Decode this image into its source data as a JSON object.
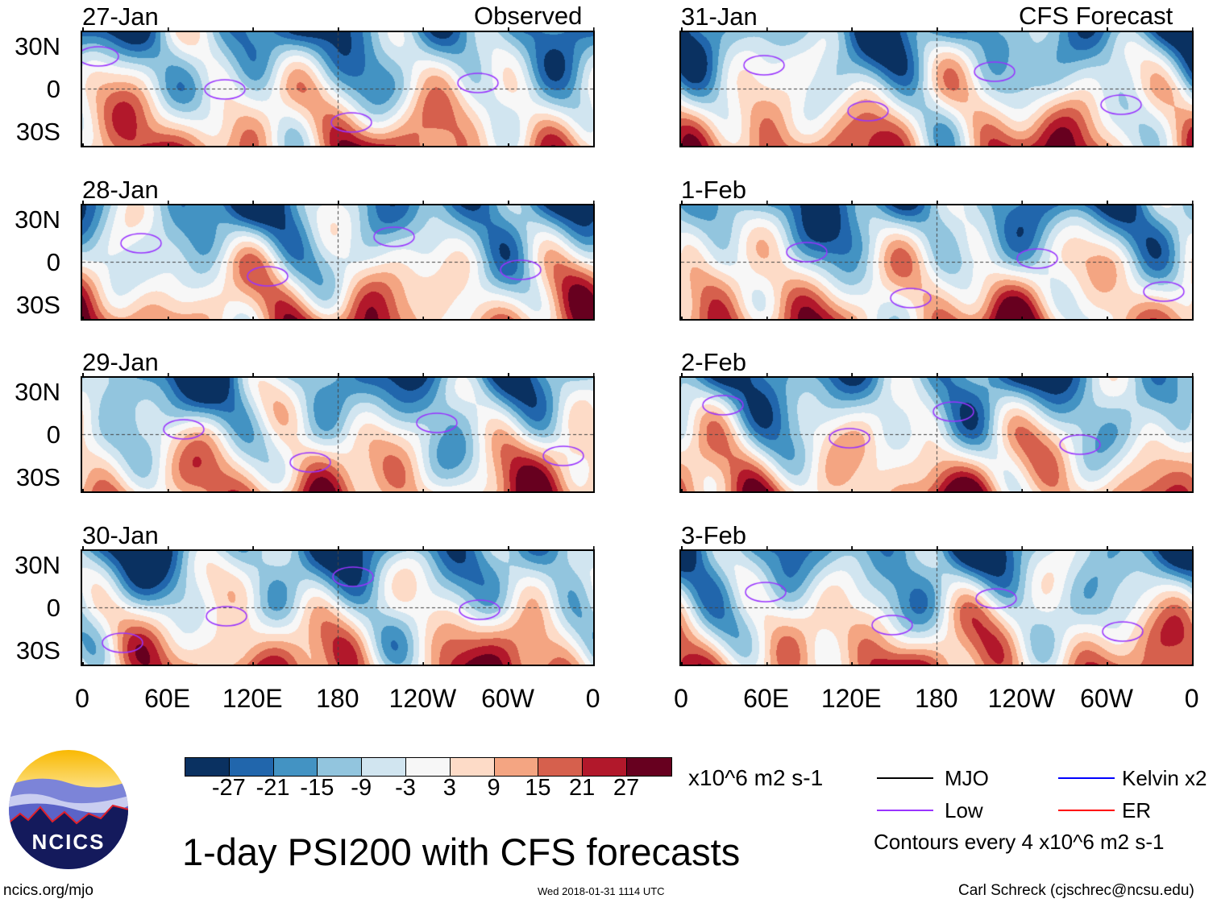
{
  "headers": {
    "left": "Observed",
    "right": "CFS Forecast"
  },
  "panels": [
    {
      "date": "27-Jan",
      "column": "observed"
    },
    {
      "date": "28-Jan",
      "column": "observed"
    },
    {
      "date": "29-Jan",
      "column": "observed"
    },
    {
      "date": "30-Jan",
      "column": "observed"
    },
    {
      "date": "31-Jan",
      "column": "forecast"
    },
    {
      "date": "1-Feb",
      "column": "forecast"
    },
    {
      "date": "2-Feb",
      "column": "forecast"
    },
    {
      "date": "3-Feb",
      "column": "forecast"
    }
  ],
  "lat_ticks": [
    "30N",
    "0",
    "30S"
  ],
  "lon_ticks": [
    "0",
    "60E",
    "120E",
    "180",
    "120W",
    "60W",
    "0"
  ],
  "colorbar": {
    "labels": [
      "-27",
      "-21",
      "-15",
      "-9",
      "-3",
      "3",
      "9",
      "15",
      "21",
      "27"
    ],
    "colors": [
      "#0a3161",
      "#2166ac",
      "#4393c3",
      "#92c5de",
      "#d1e5f0",
      "#f7f7f7",
      "#fddbc7",
      "#f4a582",
      "#d6604d",
      "#b2182b",
      "#67001f"
    ],
    "units": "x10^6 m2 s-1"
  },
  "legend": {
    "items": [
      {
        "label": "MJO",
        "color": "#000000"
      },
      {
        "label": "Low",
        "color": "#9933ff"
      },
      {
        "label": "Kelvin x2",
        "color": "#0000ff"
      },
      {
        "label": "ER",
        "color": "#ff0000"
      }
    ],
    "note": "Contours every 4 x10^6 m2 s-1"
  },
  "title": "1-day PSI200 with CFS forecasts",
  "logo": {
    "text": "NCICS"
  },
  "footer": {
    "url": "ncics.org/mjo",
    "timestamp": "Wed 2018-01-31 1114 UTC",
    "author": "Carl Schreck (cjschrec@ncsu.edu)"
  }
}
